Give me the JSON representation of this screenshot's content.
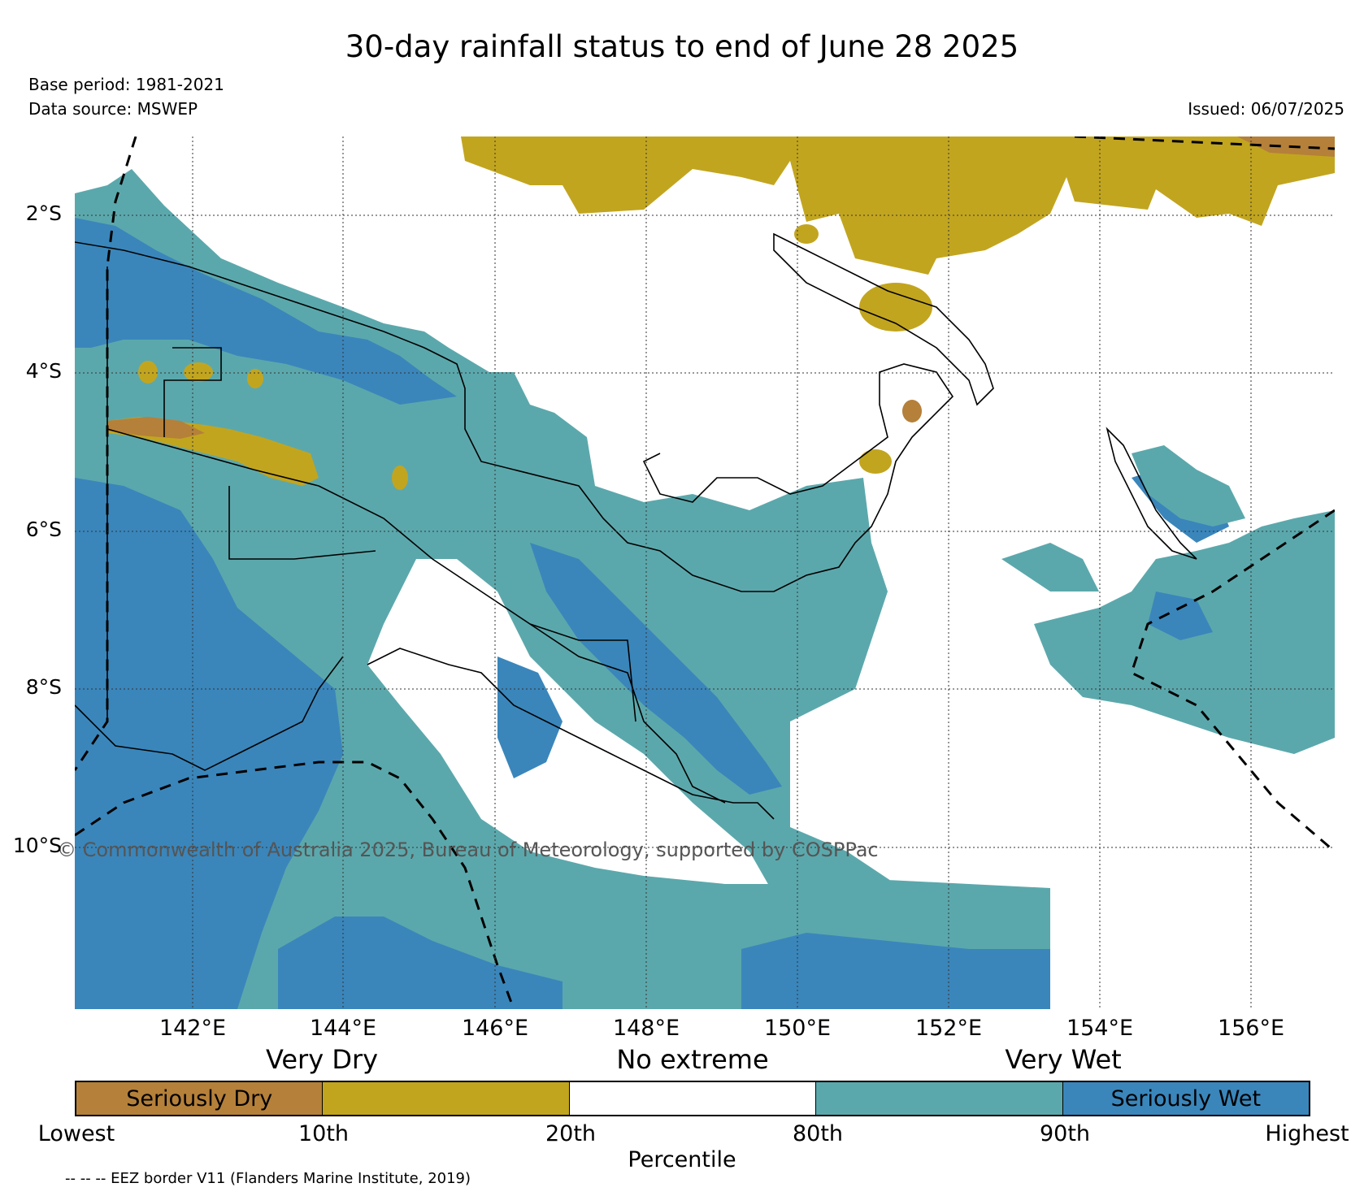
{
  "title": "30-day rainfall status to end of June 28 2025",
  "base_period": "Base period: 1981-2021",
  "data_source": "Data source: MSWEP",
  "issued": "Issued: 06/07/2025",
  "copyright": "© Commonwealth of Australia 2025, Bureau of Meteorology, supported by COSPPac",
  "lat_labels": [
    "2°S",
    "4°S",
    "6°S",
    "8°S",
    "10°S"
  ],
  "lon_labels": [
    "142°E",
    "144°E",
    "146°E",
    "148°E",
    "150°E",
    "152°E",
    "154°E",
    "156°E"
  ],
  "categories": {
    "dry": "Very Dry",
    "mid": "No extreme",
    "wet": "Very Wet"
  },
  "legend": [
    {
      "label": "Seriously Dry",
      "color": "#b5803a"
    },
    {
      "label": "",
      "color": "#c2a51f"
    },
    {
      "label": "",
      "color": "#ffffff"
    },
    {
      "label": "",
      "color": "#5ba8ac"
    },
    {
      "label": "Seriously Wet",
      "color": "#3a86bb"
    }
  ],
  "ticks": [
    "Lowest",
    "10th",
    "20th",
    "80th",
    "90th",
    "Highest"
  ],
  "percentile_label": "Percentile",
  "eez_note": "-- -- -- EEZ border V11 (Flanders Marine Institute, 2019)"
}
